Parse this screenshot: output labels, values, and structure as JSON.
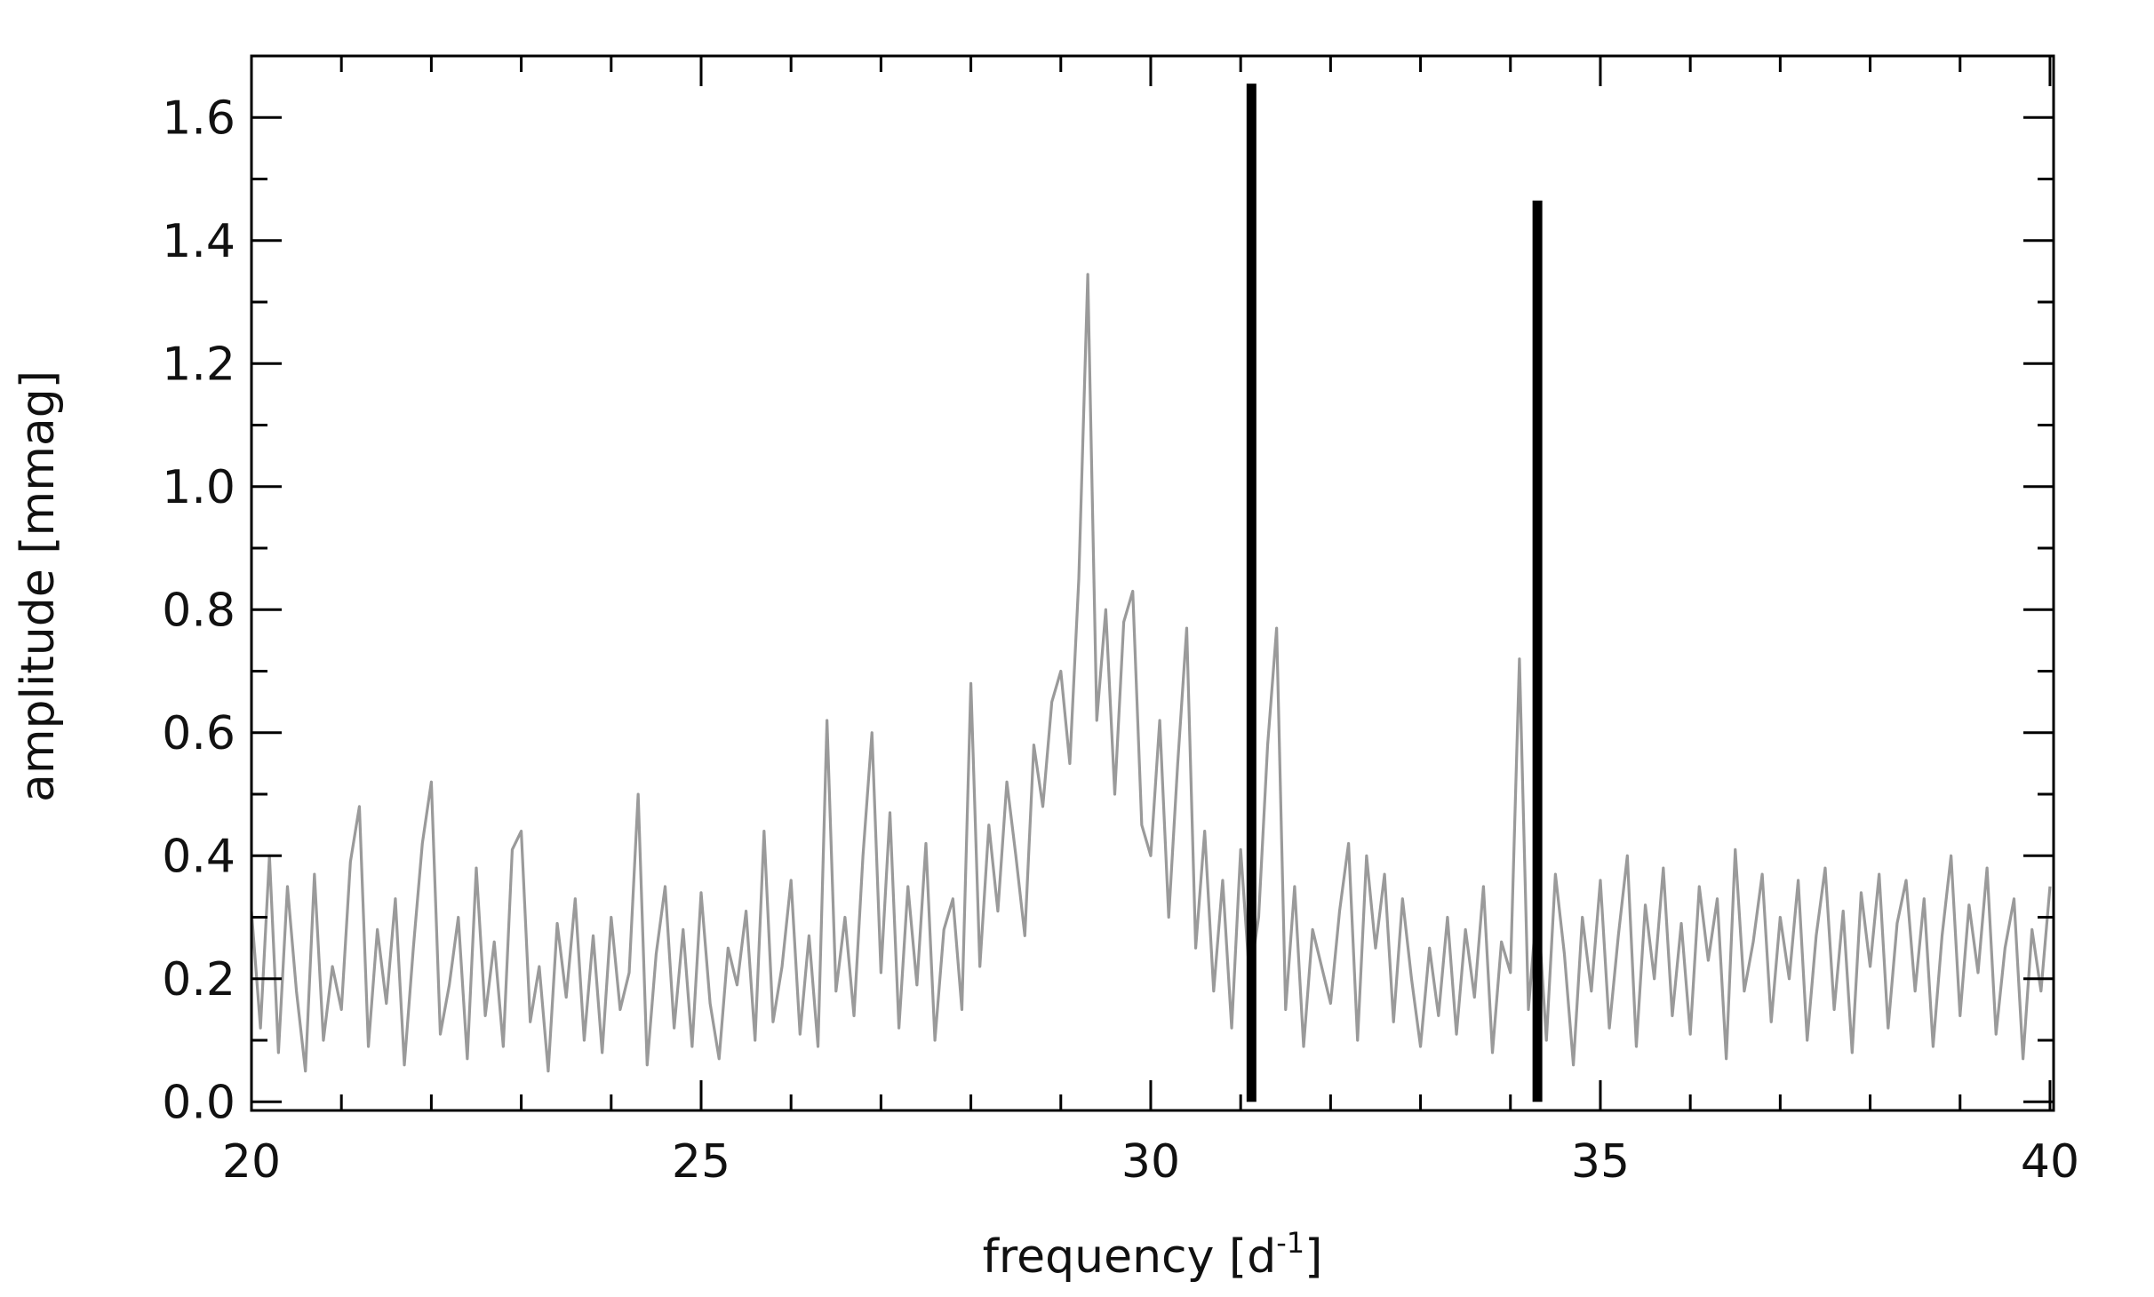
{
  "chart_data": {
    "type": "line",
    "xlabel": [
      "frequency [d",
      "-1",
      "]"
    ],
    "ylabel": "amplitude [mmag]",
    "xlim": [
      20,
      40.04
    ],
    "ylim": [
      -0.014,
      1.7
    ],
    "xticks": [
      20,
      25,
      30,
      35,
      40
    ],
    "yticks": [
      {
        "value": 0,
        "label": "0.0"
      },
      0.2,
      0.4,
      0.6,
      0.8,
      {
        "value": 1,
        "label": "1.0"
      },
      1.2,
      1.4,
      1.6
    ],
    "xminorticks": [
      21,
      22,
      23,
      24,
      26,
      27,
      28,
      29,
      31,
      32,
      33,
      34,
      36,
      37,
      38,
      39
    ],
    "yminorticks": [
      0.1,
      0.3,
      0.5,
      0.7,
      0.9,
      1.1,
      1.3,
      1.5
    ],
    "series": [
      {
        "type": "line",
        "color": "#9a9a9a",
        "x": [
          20.0,
          20.1,
          20.2,
          20.3,
          20.4,
          20.5,
          20.6,
          20.7,
          20.8,
          20.9,
          21.0,
          21.1,
          21.2,
          21.3,
          21.4,
          21.5,
          21.6,
          21.7,
          21.8,
          21.9,
          22.0,
          22.1,
          22.2,
          22.3,
          22.4,
          22.5,
          22.6,
          22.7,
          22.8,
          22.9,
          23.0,
          23.1,
          23.2,
          23.3,
          23.4,
          23.5,
          23.6,
          23.7,
          23.8,
          23.9,
          24.0,
          24.1,
          24.2,
          24.3,
          24.4,
          24.5,
          24.6,
          24.7,
          24.8,
          24.9,
          25.0,
          25.1,
          25.2,
          25.3,
          25.4,
          25.5,
          25.6,
          25.7,
          25.8,
          25.9,
          26.0,
          26.1,
          26.2,
          26.3,
          26.4,
          26.5,
          26.6,
          26.7,
          26.8,
          26.9,
          27.0,
          27.1,
          27.2,
          27.3,
          27.4,
          27.5,
          27.6,
          27.7,
          27.8,
          27.9,
          28.0,
          28.1,
          28.2,
          28.3,
          28.4,
          28.5,
          28.6,
          28.7,
          28.8,
          28.9,
          29.0,
          29.1,
          29.2,
          29.3,
          29.4,
          29.5,
          29.6,
          29.7,
          29.8,
          29.9,
          30.0,
          30.1,
          30.2,
          30.3,
          30.4,
          30.5,
          30.6,
          30.7,
          30.8,
          30.9,
          31.0,
          31.1,
          31.2,
          31.3,
          31.4,
          31.5,
          31.6,
          31.7,
          31.8,
          31.9,
          32.0,
          32.1,
          32.2,
          32.3,
          32.4,
          32.5,
          32.6,
          32.7,
          32.8,
          32.9,
          33.0,
          33.1,
          33.2,
          33.3,
          33.4,
          33.5,
          33.6,
          33.7,
          33.8,
          33.9,
          34.0,
          34.1,
          34.2,
          34.3,
          34.4,
          34.5,
          34.6,
          34.7,
          34.8,
          34.9,
          35.0,
          35.1,
          35.2,
          35.3,
          35.4,
          35.5,
          35.6,
          35.7,
          35.8,
          35.9,
          36.0,
          36.1,
          36.2,
          36.3,
          36.4,
          36.5,
          36.6,
          36.7,
          36.8,
          36.9,
          37.0,
          37.1,
          37.2,
          37.3,
          37.4,
          37.5,
          37.6,
          37.7,
          37.8,
          37.9,
          38.0,
          38.1,
          38.2,
          38.3,
          38.4,
          38.5,
          38.6,
          38.7,
          38.8,
          38.9,
          39.0,
          39.1,
          39.2,
          39.3,
          39.4,
          39.5,
          39.6,
          39.7,
          39.8,
          39.9,
          40.0
        ],
        "values": [
          0.31,
          0.12,
          0.4,
          0.08,
          0.35,
          0.18,
          0.05,
          0.37,
          0.1,
          0.22,
          0.15,
          0.39,
          0.48,
          0.09,
          0.28,
          0.16,
          0.33,
          0.06,
          0.25,
          0.42,
          0.52,
          0.11,
          0.19,
          0.3,
          0.07,
          0.38,
          0.14,
          0.26,
          0.09,
          0.41,
          0.44,
          0.13,
          0.22,
          0.05,
          0.29,
          0.17,
          0.33,
          0.1,
          0.27,
          0.08,
          0.3,
          0.15,
          0.21,
          0.5,
          0.06,
          0.24,
          0.35,
          0.12,
          0.28,
          0.09,
          0.34,
          0.16,
          0.07,
          0.25,
          0.19,
          0.31,
          0.1,
          0.44,
          0.13,
          0.22,
          0.36,
          0.11,
          0.27,
          0.09,
          0.62,
          0.18,
          0.3,
          0.14,
          0.4,
          0.6,
          0.21,
          0.47,
          0.12,
          0.35,
          0.19,
          0.42,
          0.1,
          0.28,
          0.33,
          0.15,
          0.68,
          0.22,
          0.45,
          0.31,
          0.52,
          0.4,
          0.27,
          0.58,
          0.48,
          0.65,
          0.7,
          0.55,
          0.85,
          1.345,
          0.62,
          0.8,
          0.5,
          0.78,
          0.83,
          0.45,
          0.4,
          0.62,
          0.3,
          0.55,
          0.77,
          0.25,
          0.44,
          0.18,
          0.36,
          0.12,
          0.41,
          0.2,
          0.3,
          0.58,
          0.77,
          0.15,
          0.35,
          0.09,
          0.28,
          0.22,
          0.16,
          0.31,
          0.42,
          0.1,
          0.4,
          0.25,
          0.37,
          0.13,
          0.33,
          0.2,
          0.09,
          0.25,
          0.14,
          0.3,
          0.11,
          0.28,
          0.17,
          0.35,
          0.08,
          0.26,
          0.21,
          0.72,
          0.15,
          0.33,
          0.1,
          0.37,
          0.24,
          0.06,
          0.3,
          0.18,
          0.36,
          0.12,
          0.27,
          0.4,
          0.09,
          0.32,
          0.2,
          0.38,
          0.14,
          0.29,
          0.11,
          0.35,
          0.23,
          0.33,
          0.07,
          0.41,
          0.18,
          0.26,
          0.37,
          0.13,
          0.3,
          0.2,
          0.36,
          0.1,
          0.27,
          0.38,
          0.15,
          0.31,
          0.08,
          0.34,
          0.22,
          0.37,
          0.12,
          0.29,
          0.36,
          0.18,
          0.33,
          0.09,
          0.27,
          0.4,
          0.14,
          0.32,
          0.21,
          0.38,
          0.11,
          0.25,
          0.33,
          0.07,
          0.28,
          0.18,
          0.35
        ]
      },
      {
        "type": "bar",
        "color": "#000000",
        "x": [
          31.12,
          34.3
        ],
        "values": [
          1.655,
          1.465
        ]
      }
    ]
  }
}
